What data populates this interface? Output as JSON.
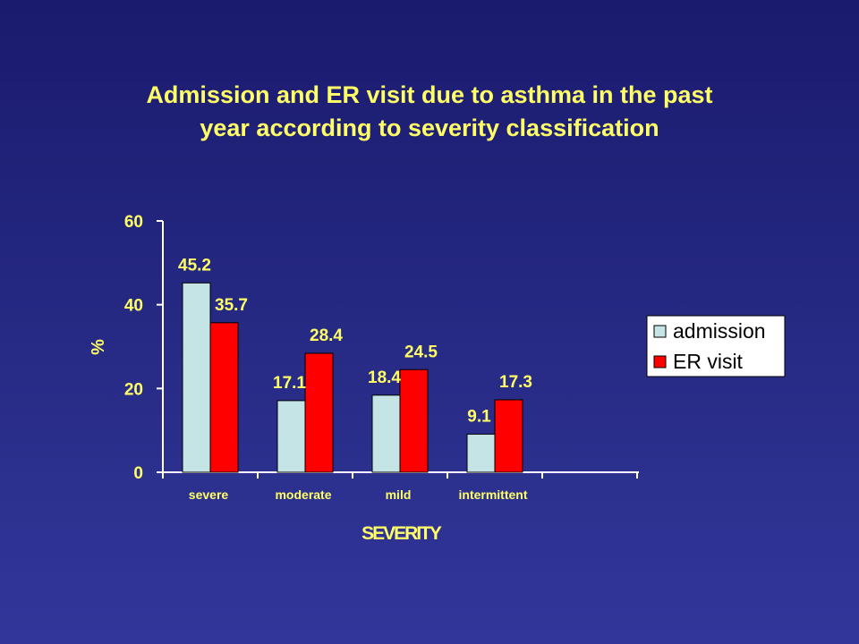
{
  "slide": {
    "title_line1": "Admission and ER visit due to asthma in the past",
    "title_line2": "year according to severity classification"
  },
  "colors": {
    "text": "#ffff66",
    "admission": "#c5e4e6",
    "er_visit": "#ff0000",
    "axis": "#ffffff",
    "legend_bg": "#ffffff"
  },
  "chart_data": {
    "type": "bar",
    "categories": [
      "severe",
      "moderate",
      "mild",
      "intermittent"
    ],
    "series": [
      {
        "name": "admission",
        "values": [
          45.2,
          17.1,
          18.4,
          9.1
        ]
      },
      {
        "name": "ER visit",
        "values": [
          35.7,
          28.4,
          24.5,
          17.3
        ]
      }
    ],
    "xlabel": "SEVERITY",
    "ylabel": "%",
    "ylim": [
      0,
      60
    ],
    "yticks": [
      0,
      20,
      40,
      60
    ],
    "grid": false,
    "legend_position": "right",
    "data_labels": true
  }
}
